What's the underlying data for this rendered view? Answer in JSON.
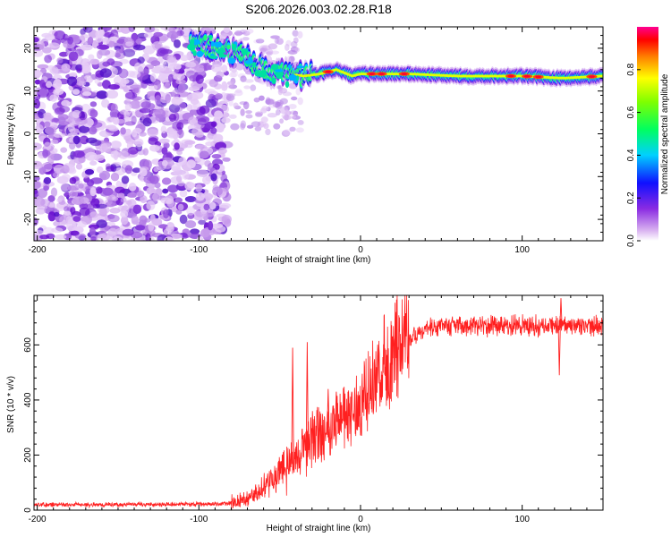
{
  "title": "S206.2026.003.02.28.R18",
  "chart_data": [
    {
      "type": "heatmap",
      "name": "spectrogram",
      "xlabel": "Height of straight line (km)",
      "ylabel": "Frequency (Hz)",
      "xlim": [
        -202,
        150
      ],
      "ylim": [
        -25,
        25
      ],
      "x_ticks": [
        -200,
        -100,
        0,
        100
      ],
      "y_ticks": [
        -20,
        -10,
        0,
        10,
        20
      ],
      "noise_region_x": [
        -202,
        -82
      ],
      "signal_line": {
        "x": [
          -105,
          -95,
          -85,
          -75,
          -65,
          -55,
          -45,
          -35,
          -25,
          -15,
          -5,
          0,
          10,
          30,
          60,
          100,
          125,
          150
        ],
        "y": [
          21,
          20.5,
          19.5,
          18.5,
          16.5,
          14.5,
          14,
          13.5,
          14,
          15,
          13.5,
          14,
          14,
          14,
          13.5,
          13.5,
          13,
          13.5
        ]
      },
      "hotspots_x": [
        -20,
        7,
        13,
        27,
        93,
        103,
        110,
        143
      ],
      "colorbar": {
        "label": "Normalized spectral amplitude",
        "range": [
          0,
          1
        ],
        "ticks": [
          "0.0",
          "0.2",
          "0.4",
          "0.6",
          "0.8"
        ]
      }
    },
    {
      "type": "line",
      "name": "snr",
      "xlabel": "Height of straight line (km)",
      "ylabel": "SNR (10 * v/v)",
      "xlim": [
        -202,
        150
      ],
      "ylim": [
        0,
        780
      ],
      "x_ticks": [
        -200,
        -100,
        0,
        100
      ],
      "y_ticks": [
        0,
        200,
        400,
        600
      ],
      "color": "#ff2020",
      "trend": {
        "x": [
          -202,
          -150,
          -90,
          -80,
          -70,
          -60,
          -50,
          -40,
          -30,
          -20,
          -10,
          0,
          10,
          20,
          30,
          40,
          60,
          100,
          150
        ],
        "y": [
          20,
          20,
          22,
          25,
          45,
          80,
          140,
          200,
          260,
          300,
          340,
          380,
          470,
          560,
          630,
          660,
          670,
          670,
          670
        ]
      },
      "spikes": [
        {
          "x": -42,
          "y": 590
        },
        {
          "x": -33,
          "y": 610
        },
        {
          "x": -20,
          "y": 440
        },
        {
          "x": -15,
          "y": 430
        },
        {
          "x": 124,
          "y": 770
        },
        {
          "x": 123,
          "y": 490
        }
      ]
    }
  ]
}
